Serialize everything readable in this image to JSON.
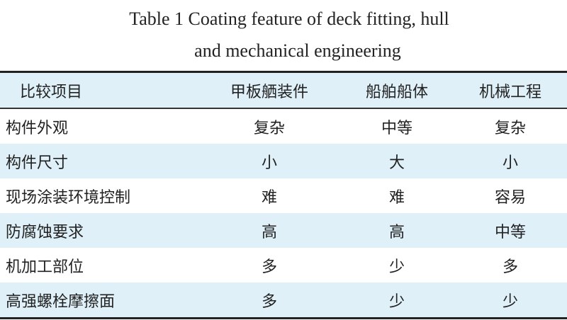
{
  "title_line1": "Table 1   Coating feature of deck fitting, hull",
  "title_line2": "and mechanical engineering",
  "header": [
    "比较项目",
    "甲板舾装件",
    "船舶船体",
    "机械工程"
  ],
  "rows": [
    [
      "构件外观",
      "复杂",
      "中等",
      "复杂"
    ],
    [
      "构件尺寸",
      "小",
      "大",
      "小"
    ],
    [
      "现场涂装环境控制",
      "难",
      "难",
      "容易"
    ],
    [
      "防腐蚀要求",
      "高",
      "高",
      "中等"
    ],
    [
      "机加工部位",
      "多",
      "少",
      "多"
    ],
    [
      "高强螺栓摩擦面",
      "多",
      "少",
      "少"
    ]
  ],
  "colors": {
    "stripe": "#dff0f8",
    "rule": "#222222"
  }
}
